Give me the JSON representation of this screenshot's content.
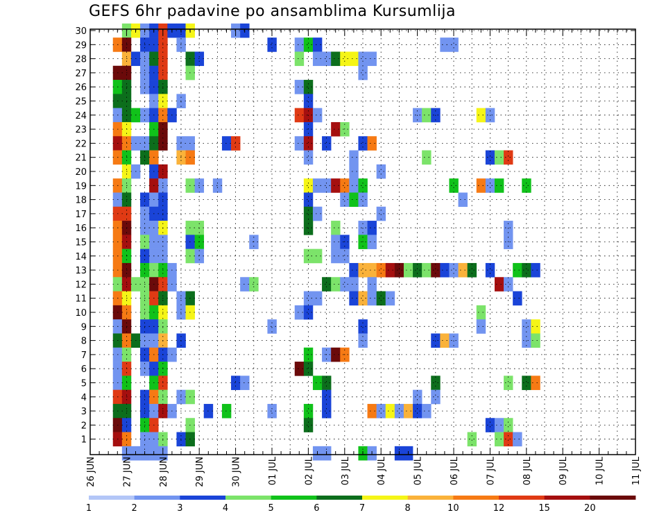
{
  "chart_data": {
    "type": "heatmap",
    "title": "GEFS 6hr padavine po ansamblima Kursumlija",
    "xlabel": "",
    "ylabel": "",
    "x_ticks": [
      "26 JUN",
      "27 JUN",
      "28 JUN",
      "29 JUN",
      "30 JUN",
      "01 JUL",
      "02 JUL",
      "03 JUL",
      "04 JUL",
      "05 JUL",
      "06 JUL",
      "07 JUL",
      "08 JUL",
      "09 JUL",
      "10 JUL",
      "11 JUL"
    ],
    "y_ticks": [
      "1",
      "2",
      "3",
      "4",
      "5",
      "6",
      "7",
      "8",
      "9",
      "10",
      "11",
      "12",
      "13",
      "14",
      "15",
      "16",
      "17",
      "18",
      "19",
      "20",
      "21",
      "22",
      "23",
      "24",
      "25",
      "26",
      "27",
      "28",
      "29",
      "30"
    ],
    "x_unit": "6-hour steps from 26 JUN 00",
    "grid": true,
    "colorbar": {
      "ticks": [
        "1",
        "2",
        "3",
        "4",
        "5",
        "6",
        "7",
        "8",
        "10",
        "12",
        "15",
        "20"
      ],
      "colors": [
        "#b3c6f7",
        "#7294f0",
        "#1a44d8",
        "#7ce36a",
        "#10c21a",
        "#0c6e1c",
        "#f5f517",
        "#fab23a",
        "#f67a14",
        "#e03a14",
        "#a50f0f",
        "#6b0a0a"
      ]
    },
    "cells": [
      [
        4,
        30,
        3
      ],
      [
        5,
        30,
        6
      ],
      [
        6,
        30,
        1
      ],
      [
        7,
        30,
        2
      ],
      [
        8,
        30,
        9
      ],
      [
        9,
        30,
        2
      ],
      [
        10,
        30,
        2
      ],
      [
        11,
        30,
        6
      ],
      [
        16,
        30,
        1
      ],
      [
        17,
        30,
        2
      ],
      [
        3,
        29,
        8
      ],
      [
        4,
        29,
        11
      ],
      [
        6,
        29,
        2
      ],
      [
        7,
        29,
        2
      ],
      [
        8,
        29,
        9
      ],
      [
        10,
        29,
        1
      ],
      [
        20,
        29,
        2
      ],
      [
        23,
        29,
        1
      ],
      [
        24,
        29,
        4
      ],
      [
        25,
        29,
        2
      ],
      [
        39,
        29,
        1
      ],
      [
        40,
        29,
        1
      ],
      [
        4,
        28,
        7
      ],
      [
        5,
        28,
        2
      ],
      [
        6,
        28,
        1
      ],
      [
        7,
        28,
        5
      ],
      [
        8,
        28,
        9
      ],
      [
        11,
        28,
        5
      ],
      [
        12,
        28,
        2
      ],
      [
        23,
        28,
        3
      ],
      [
        25,
        28,
        1
      ],
      [
        26,
        28,
        1
      ],
      [
        27,
        28,
        5
      ],
      [
        28,
        28,
        6
      ],
      [
        29,
        28,
        6
      ],
      [
        30,
        28,
        1
      ],
      [
        31,
        28,
        1
      ],
      [
        3,
        27,
        11
      ],
      [
        4,
        27,
        11
      ],
      [
        6,
        27,
        1
      ],
      [
        7,
        27,
        2
      ],
      [
        8,
        27,
        9
      ],
      [
        11,
        27,
        3
      ],
      [
        30,
        27,
        1
      ],
      [
        3,
        26,
        4
      ],
      [
        4,
        26,
        5
      ],
      [
        6,
        26,
        1
      ],
      [
        7,
        26,
        2
      ],
      [
        8,
        26,
        5
      ],
      [
        23,
        26,
        1
      ],
      [
        24,
        26,
        5
      ],
      [
        3,
        25,
        5
      ],
      [
        4,
        25,
        5
      ],
      [
        7,
        25,
        1
      ],
      [
        8,
        25,
        6
      ],
      [
        10,
        25,
        1
      ],
      [
        24,
        25,
        2
      ],
      [
        3,
        24,
        1
      ],
      [
        4,
        24,
        5
      ],
      [
        5,
        24,
        4
      ],
      [
        6,
        24,
        1
      ],
      [
        7,
        24,
        2
      ],
      [
        8,
        24,
        8
      ],
      [
        9,
        24,
        2
      ],
      [
        23,
        24,
        9
      ],
      [
        24,
        24,
        10
      ],
      [
        25,
        24,
        1
      ],
      [
        36,
        24,
        1
      ],
      [
        37,
        24,
        3
      ],
      [
        38,
        24,
        2
      ],
      [
        43,
        24,
        6
      ],
      [
        44,
        24,
        1
      ],
      [
        3,
        23,
        8
      ],
      [
        4,
        23,
        6
      ],
      [
        7,
        23,
        4
      ],
      [
        8,
        23,
        11
      ],
      [
        24,
        23,
        2
      ],
      [
        27,
        23,
        10
      ],
      [
        28,
        23,
        3
      ],
      [
        3,
        22,
        10
      ],
      [
        4,
        22,
        8
      ],
      [
        5,
        22,
        1
      ],
      [
        6,
        22,
        1
      ],
      [
        7,
        22,
        5
      ],
      [
        8,
        22,
        11
      ],
      [
        10,
        22,
        1
      ],
      [
        11,
        22,
        1
      ],
      [
        15,
        22,
        2
      ],
      [
        16,
        22,
        9
      ],
      [
        23,
        22,
        1
      ],
      [
        24,
        22,
        10
      ],
      [
        26,
        22,
        2
      ],
      [
        30,
        22,
        2
      ],
      [
        31,
        22,
        8
      ],
      [
        3,
        21,
        8
      ],
      [
        4,
        21,
        4
      ],
      [
        6,
        21,
        5
      ],
      [
        7,
        21,
        8
      ],
      [
        10,
        21,
        7
      ],
      [
        11,
        21,
        8
      ],
      [
        24,
        21,
        1
      ],
      [
        29,
        21,
        1
      ],
      [
        37,
        21,
        3
      ],
      [
        44,
        21,
        2
      ],
      [
        45,
        21,
        3
      ],
      [
        46,
        21,
        9
      ],
      [
        4,
        20,
        6
      ],
      [
        5,
        20,
        1
      ],
      [
        7,
        20,
        2
      ],
      [
        8,
        20,
        10
      ],
      [
        29,
        20,
        1
      ],
      [
        32,
        20,
        1
      ],
      [
        3,
        19,
        8
      ],
      [
        4,
        19,
        3
      ],
      [
        7,
        19,
        10
      ],
      [
        8,
        19,
        1
      ],
      [
        11,
        19,
        3
      ],
      [
        12,
        19,
        1
      ],
      [
        14,
        19,
        1
      ],
      [
        24,
        19,
        6
      ],
      [
        25,
        19,
        1
      ],
      [
        26,
        19,
        1
      ],
      [
        27,
        19,
        10
      ],
      [
        28,
        19,
        8
      ],
      [
        29,
        19,
        1
      ],
      [
        30,
        19,
        4
      ],
      [
        40,
        19,
        4
      ],
      [
        43,
        19,
        8
      ],
      [
        44,
        19,
        1
      ],
      [
        45,
        19,
        4
      ],
      [
        48,
        19,
        4
      ],
      [
        3,
        18,
        1
      ],
      [
        4,
        18,
        5
      ],
      [
        6,
        18,
        2
      ],
      [
        7,
        18,
        1
      ],
      [
        8,
        18,
        2
      ],
      [
        24,
        18,
        2
      ],
      [
        28,
        18,
        1
      ],
      [
        29,
        18,
        4
      ],
      [
        30,
        18,
        1
      ],
      [
        41,
        18,
        1
      ],
      [
        3,
        17,
        9
      ],
      [
        4,
        17,
        9
      ],
      [
        6,
        17,
        1
      ],
      [
        7,
        17,
        2
      ],
      [
        8,
        17,
        2
      ],
      [
        24,
        17,
        5
      ],
      [
        25,
        17,
        1
      ],
      [
        32,
        17,
        1
      ],
      [
        3,
        16,
        8
      ],
      [
        4,
        16,
        11
      ],
      [
        6,
        16,
        1
      ],
      [
        7,
        16,
        1
      ],
      [
        8,
        16,
        6
      ],
      [
        11,
        16,
        3
      ],
      [
        12,
        16,
        3
      ],
      [
        24,
        16,
        5
      ],
      [
        27,
        16,
        3
      ],
      [
        30,
        16,
        1
      ],
      [
        31,
        16,
        2
      ],
      [
        46,
        16,
        1
      ],
      [
        3,
        15,
        8
      ],
      [
        4,
        15,
        10
      ],
      [
        6,
        15,
        3
      ],
      [
        7,
        15,
        1
      ],
      [
        8,
        15,
        1
      ],
      [
        11,
        15,
        2
      ],
      [
        12,
        15,
        4
      ],
      [
        18,
        15,
        1
      ],
      [
        27,
        15,
        1
      ],
      [
        28,
        15,
        2
      ],
      [
        30,
        15,
        4
      ],
      [
        31,
        15,
        1
      ],
      [
        46,
        15,
        1
      ],
      [
        3,
        14,
        8
      ],
      [
        4,
        14,
        4
      ],
      [
        6,
        14,
        2
      ],
      [
        7,
        14,
        1
      ],
      [
        8,
        14,
        1
      ],
      [
        11,
        14,
        3
      ],
      [
        12,
        14,
        1
      ],
      [
        24,
        14,
        3
      ],
      [
        25,
        14,
        3
      ],
      [
        27,
        14,
        1
      ],
      [
        28,
        14,
        1
      ],
      [
        3,
        13,
        8
      ],
      [
        4,
        13,
        11
      ],
      [
        6,
        13,
        4
      ],
      [
        7,
        13,
        3
      ],
      [
        8,
        13,
        4
      ],
      [
        9,
        13,
        1
      ],
      [
        29,
        13,
        2
      ],
      [
        30,
        13,
        7
      ],
      [
        31,
        13,
        7
      ],
      [
        32,
        13,
        8
      ],
      [
        33,
        13,
        10
      ],
      [
        34,
        13,
        11
      ],
      [
        35,
        13,
        3
      ],
      [
        36,
        13,
        5
      ],
      [
        37,
        13,
        3
      ],
      [
        38,
        13,
        11
      ],
      [
        39,
        13,
        2
      ],
      [
        40,
        13,
        1
      ],
      [
        41,
        13,
        7
      ],
      [
        42,
        13,
        5
      ],
      [
        44,
        13,
        2
      ],
      [
        47,
        13,
        4
      ],
      [
        48,
        13,
        5
      ],
      [
        49,
        13,
        2
      ],
      [
        3,
        12,
        3
      ],
      [
        4,
        12,
        10
      ],
      [
        5,
        12,
        3
      ],
      [
        6,
        12,
        3
      ],
      [
        7,
        12,
        11
      ],
      [
        8,
        12,
        9
      ],
      [
        9,
        12,
        1
      ],
      [
        17,
        12,
        1
      ],
      [
        18,
        12,
        3
      ],
      [
        26,
        12,
        5
      ],
      [
        27,
        12,
        3
      ],
      [
        28,
        12,
        1
      ],
      [
        29,
        12,
        1
      ],
      [
        31,
        12,
        1
      ],
      [
        45,
        12,
        10
      ],
      [
        46,
        12,
        1
      ],
      [
        3,
        11,
        8
      ],
      [
        4,
        11,
        6
      ],
      [
        6,
        11,
        3
      ],
      [
        7,
        11,
        9
      ],
      [
        8,
        11,
        5
      ],
      [
        10,
        11,
        1
      ],
      [
        11,
        11,
        5
      ],
      [
        24,
        11,
        1
      ],
      [
        25,
        11,
        1
      ],
      [
        29,
        11,
        2
      ],
      [
        30,
        11,
        7
      ],
      [
        31,
        11,
        1
      ],
      [
        32,
        11,
        5
      ],
      [
        33,
        11,
        1
      ],
      [
        47,
        11,
        2
      ],
      [
        3,
        10,
        11
      ],
      [
        4,
        10,
        8
      ],
      [
        6,
        10,
        3
      ],
      [
        7,
        10,
        4
      ],
      [
        8,
        10,
        6
      ],
      [
        10,
        10,
        1
      ],
      [
        11,
        10,
        6
      ],
      [
        23,
        10,
        1
      ],
      [
        24,
        10,
        2
      ],
      [
        43,
        10,
        3
      ],
      [
        3,
        9,
        1
      ],
      [
        4,
        9,
        11
      ],
      [
        6,
        9,
        2
      ],
      [
        7,
        9,
        2
      ],
      [
        8,
        9,
        3
      ],
      [
        20,
        9,
        1
      ],
      [
        30,
        9,
        2
      ],
      [
        43,
        9,
        1
      ],
      [
        48,
        9,
        1
      ],
      [
        49,
        9,
        6
      ],
      [
        3,
        8,
        5
      ],
      [
        4,
        8,
        8
      ],
      [
        5,
        8,
        5
      ],
      [
        6,
        8,
        1
      ],
      [
        7,
        8,
        1
      ],
      [
        8,
        8,
        7
      ],
      [
        10,
        8,
        2
      ],
      [
        30,
        8,
        1
      ],
      [
        38,
        8,
        2
      ],
      [
        39,
        8,
        7
      ],
      [
        40,
        8,
        1
      ],
      [
        48,
        8,
        1
      ],
      [
        49,
        8,
        3
      ],
      [
        3,
        7,
        1
      ],
      [
        4,
        7,
        3
      ],
      [
        6,
        7,
        2
      ],
      [
        7,
        7,
        8
      ],
      [
        8,
        7,
        2
      ],
      [
        9,
        7,
        1
      ],
      [
        24,
        7,
        4
      ],
      [
        26,
        7,
        1
      ],
      [
        27,
        7,
        11
      ],
      [
        28,
        7,
        8
      ],
      [
        3,
        6,
        1
      ],
      [
        4,
        6,
        9
      ],
      [
        6,
        6,
        1
      ],
      [
        7,
        6,
        2
      ],
      [
        8,
        6,
        4
      ],
      [
        23,
        6,
        11
      ],
      [
        24,
        6,
        5
      ],
      [
        3,
        5,
        1
      ],
      [
        4,
        5,
        4
      ],
      [
        7,
        5,
        4
      ],
      [
        8,
        5,
        9
      ],
      [
        16,
        5,
        2
      ],
      [
        17,
        5,
        1
      ],
      [
        25,
        5,
        4
      ],
      [
        26,
        5,
        5
      ],
      [
        38,
        5,
        5
      ],
      [
        46,
        5,
        3
      ],
      [
        48,
        5,
        5
      ],
      [
        49,
        5,
        8
      ],
      [
        3,
        4,
        9
      ],
      [
        4,
        4,
        10
      ],
      [
        6,
        4,
        2
      ],
      [
        7,
        4,
        8
      ],
      [
        8,
        4,
        3
      ],
      [
        10,
        4,
        1
      ],
      [
        11,
        4,
        3
      ],
      [
        26,
        4,
        2
      ],
      [
        36,
        4,
        1
      ],
      [
        38,
        4,
        1
      ],
      [
        3,
        3,
        5
      ],
      [
        4,
        3,
        5
      ],
      [
        6,
        3,
        2
      ],
      [
        7,
        3,
        1
      ],
      [
        8,
        3,
        10
      ],
      [
        9,
        3,
        1
      ],
      [
        13,
        3,
        2
      ],
      [
        15,
        3,
        4
      ],
      [
        20,
        3,
        1
      ],
      [
        24,
        3,
        4
      ],
      [
        26,
        3,
        2
      ],
      [
        31,
        3,
        8
      ],
      [
        32,
        3,
        1
      ],
      [
        33,
        3,
        6
      ],
      [
        34,
        3,
        1
      ],
      [
        35,
        3,
        7
      ],
      [
        36,
        3,
        2
      ],
      [
        37,
        3,
        1
      ],
      [
        3,
        2,
        11
      ],
      [
        4,
        2,
        2
      ],
      [
        6,
        2,
        4
      ],
      [
        7,
        2,
        9
      ],
      [
        11,
        2,
        3
      ],
      [
        24,
        2,
        5
      ],
      [
        44,
        2,
        2
      ],
      [
        45,
        2,
        1
      ],
      [
        46,
        2,
        3
      ],
      [
        3,
        1,
        10
      ],
      [
        4,
        1,
        8
      ],
      [
        6,
        1,
        1
      ],
      [
        7,
        1,
        1
      ],
      [
        8,
        1,
        3
      ],
      [
        10,
        1,
        2
      ],
      [
        11,
        1,
        5
      ],
      [
        42,
        1,
        3
      ],
      [
        45,
        1,
        3
      ],
      [
        46,
        1,
        9
      ],
      [
        47,
        1,
        1
      ],
      [
        4,
        0,
        1
      ],
      [
        5,
        0,
        1
      ],
      [
        6,
        0,
        1
      ],
      [
        7,
        0,
        1
      ],
      [
        8,
        0,
        1
      ],
      [
        25,
        0,
        1
      ],
      [
        26,
        0,
        1
      ],
      [
        30,
        0,
        4
      ],
      [
        31,
        0,
        1
      ],
      [
        34,
        0,
        2
      ],
      [
        35,
        0,
        2
      ]
    ]
  }
}
